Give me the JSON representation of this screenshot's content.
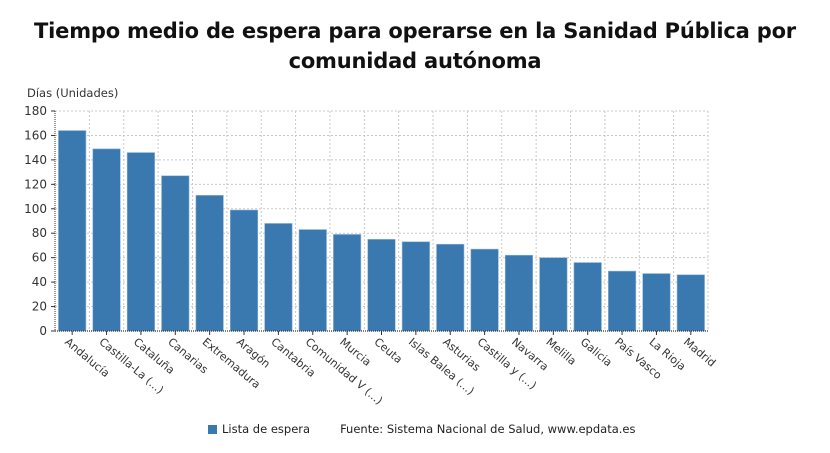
{
  "chart_data": {
    "type": "bar",
    "title": "Tiempo medio de espera para operarse en la Sanidad Pública por comunidad autónoma",
    "ylabel": "Días (Unidades)",
    "xlabel": "",
    "ylim": [
      0,
      180
    ],
    "yticks": [
      0,
      20,
      40,
      60,
      80,
      100,
      120,
      140,
      160,
      180
    ],
    "grid": true,
    "legend_position": "bottom",
    "categories": [
      "Andalucía",
      "Castilla-La (...)",
      "Cataluña",
      "Canarias",
      "Extremadura",
      "Aragón",
      "Cantabria",
      "Comunidad V (...)",
      "Murcia",
      "Ceuta",
      "Islas Balea (...)",
      "Asturias",
      "Castilla y (...)",
      "Navarra",
      "Melilla",
      "Galicia",
      "País Vasco",
      "La Rioja",
      "Madrid"
    ],
    "series": [
      {
        "name": "Lista de espera",
        "color": "#3a78b0",
        "values": [
          164,
          149,
          146,
          127,
          111,
          99,
          88,
          83,
          79,
          75,
          73,
          71,
          67,
          62,
          60,
          56,
          49,
          47,
          46
        ]
      }
    ]
  },
  "title_line1": "Tiempo medio de espera para operarse en la Sanidad Pública por",
  "title_line2": "comunidad autónoma",
  "y_axis_label": "Días (Unidades)",
  "legend": {
    "label": "Lista de espera",
    "color": "#3a78b0"
  },
  "source": "Fuente: Sistema Nacional de Salud, www.epdata.es"
}
